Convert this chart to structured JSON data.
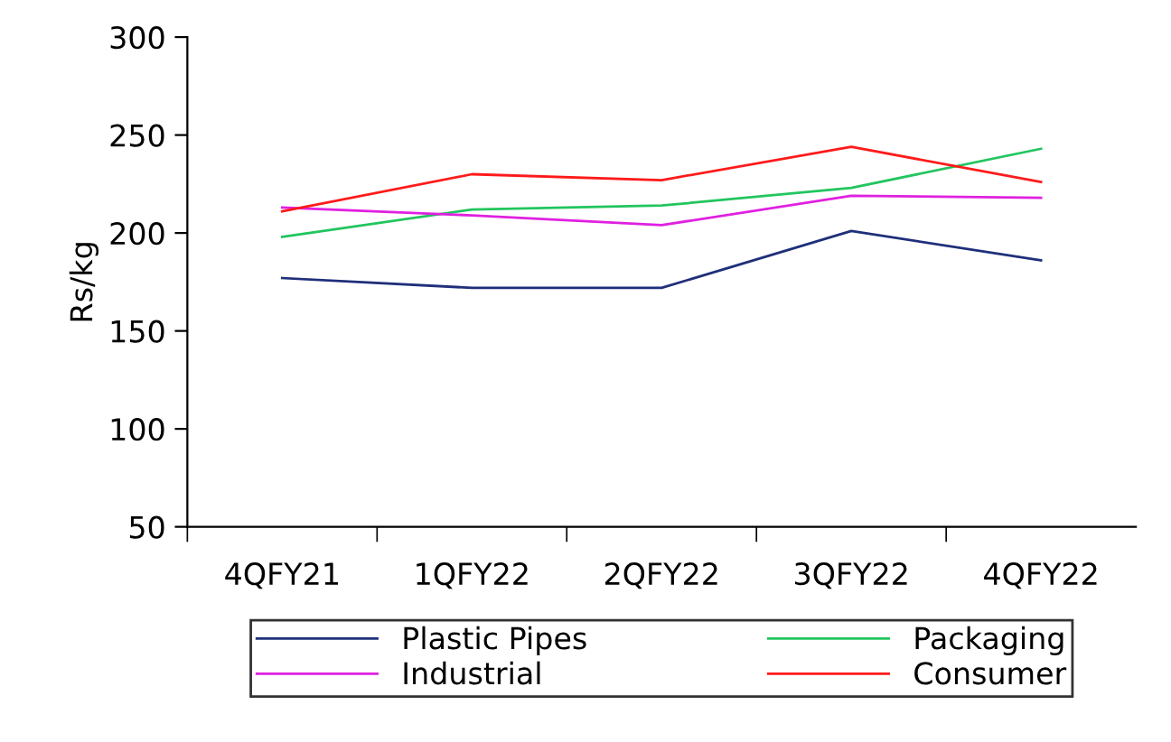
{
  "chart_data": {
    "type": "line",
    "ylabel": "Rs/kg",
    "categories": [
      "4QFY21",
      "1QFY22",
      "2QFY22",
      "3QFY22",
      "4QFY22"
    ],
    "series": [
      {
        "name": "Plastic Pipes",
        "color": "#1f2f7a",
        "values": [
          177,
          172,
          172,
          201,
          186
        ]
      },
      {
        "name": "Packaging",
        "color": "#22c55e",
        "values": [
          198,
          212,
          214,
          223,
          243
        ]
      },
      {
        "name": "Industrial",
        "color": "#e020e0",
        "values": [
          213,
          209,
          204,
          219,
          218
        ]
      },
      {
        "name": "Consumer",
        "color": "#ff1a1a",
        "values": [
          211,
          230,
          227,
          244,
          226
        ]
      }
    ],
    "ylim": [
      50,
      300
    ],
    "yticks": [
      50,
      100,
      150,
      200,
      250,
      300
    ],
    "grid": false,
    "legend": "bottom",
    "marker": "none",
    "line_style": "solid"
  }
}
